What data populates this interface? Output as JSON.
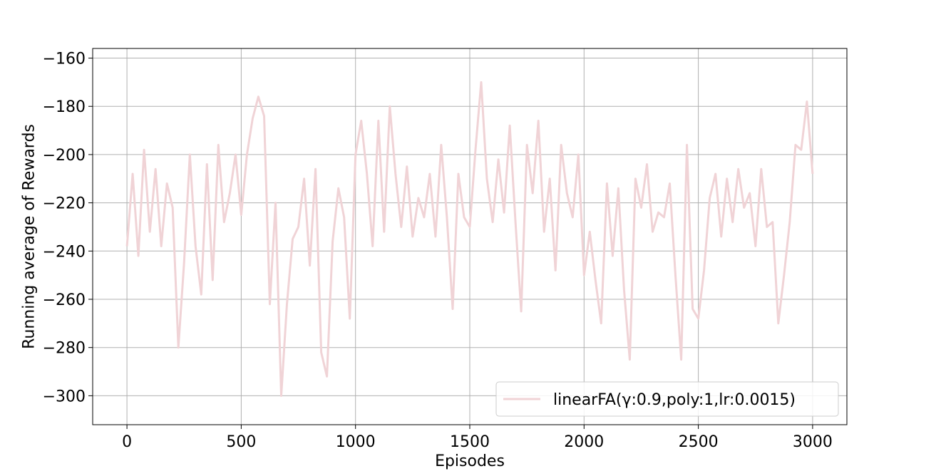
{
  "chart_data": {
    "type": "line",
    "title": "",
    "xlabel": "Episodes",
    "ylabel": "Running average of Rewards",
    "xlim": [
      -150,
      3150
    ],
    "ylim": [
      -312,
      -156
    ],
    "xticks": [
      0,
      500,
      1000,
      1500,
      2000,
      2500,
      3000
    ],
    "yticks": [
      -300,
      -280,
      -260,
      -240,
      -220,
      -200,
      -180,
      -160
    ],
    "xtick_labels": [
      "0",
      "500",
      "1000",
      "1500",
      "2000",
      "2500",
      "3000"
    ],
    "ytick_labels": [
      "−300",
      "−280",
      "−260",
      "−240",
      "−220",
      "−200",
      "−180",
      "−160"
    ],
    "grid": true,
    "legend_position": "lower-right",
    "series": [
      {
        "name": "linearFA(γ:0.9,poly:1,lr:0.0015)",
        "color": "#f0d3d6",
        "x": [
          0,
          25,
          50,
          75,
          100,
          125,
          150,
          175,
          200,
          225,
          250,
          275,
          300,
          325,
          350,
          375,
          400,
          425,
          450,
          475,
          500,
          525,
          550,
          575,
          600,
          625,
          650,
          675,
          700,
          725,
          750,
          775,
          800,
          825,
          850,
          875,
          900,
          925,
          950,
          975,
          1000,
          1025,
          1050,
          1075,
          1100,
          1125,
          1150,
          1175,
          1200,
          1225,
          1250,
          1275,
          1300,
          1325,
          1350,
          1375,
          1400,
          1425,
          1450,
          1475,
          1500,
          1525,
          1550,
          1575,
          1600,
          1625,
          1650,
          1675,
          1700,
          1725,
          1750,
          1775,
          1800,
          1825,
          1850,
          1875,
          1900,
          1925,
          1950,
          1975,
          2000,
          2025,
          2050,
          2075,
          2100,
          2125,
          2150,
          2175,
          2200,
          2225,
          2250,
          2275,
          2300,
          2325,
          2350,
          2375,
          2400,
          2425,
          2450,
          2475,
          2500,
          2525,
          2550,
          2575,
          2600,
          2625,
          2650,
          2675,
          2700,
          2725,
          2750,
          2775,
          2800,
          2825,
          2850,
          2875,
          2900,
          2925,
          2950,
          2975,
          3000
        ],
        "values": [
          -238,
          -208,
          -242,
          -198,
          -232,
          -206,
          -238,
          -212,
          -222,
          -280,
          -245,
          -200,
          -238,
          -258,
          -204,
          -252,
          -196,
          -228,
          -216,
          -200,
          -225,
          -200,
          -185,
          -176,
          -184,
          -262,
          -220,
          -300,
          -262,
          -235,
          -230,
          -210,
          -246,
          -206,
          -282,
          -292,
          -236,
          -214,
          -226,
          -268,
          -200,
          -186,
          -208,
          -238,
          -186,
          -232,
          -180,
          -208,
          -230,
          -205,
          -234,
          -218,
          -226,
          -208,
          -234,
          -196,
          -226,
          -264,
          -208,
          -226,
          -230,
          -198,
          -170,
          -210,
          -228,
          -202,
          -224,
          -188,
          -228,
          -265,
          -196,
          -216,
          -186,
          -232,
          -210,
          -248,
          -196,
          -216,
          -226,
          -200,
          -250,
          -232,
          -252,
          -270,
          -212,
          -242,
          -214,
          -256,
          -285,
          -210,
          -222,
          -204,
          -232,
          -224,
          -226,
          -212,
          -250,
          -285,
          -196,
          -264,
          -268,
          -248,
          -218,
          -208,
          -234,
          -210,
          -228,
          -206,
          -222,
          -216,
          -238,
          -206,
          -230,
          -228,
          -270,
          -250,
          -228,
          -196,
          -198,
          -178,
          -208
        ]
      }
    ]
  }
}
